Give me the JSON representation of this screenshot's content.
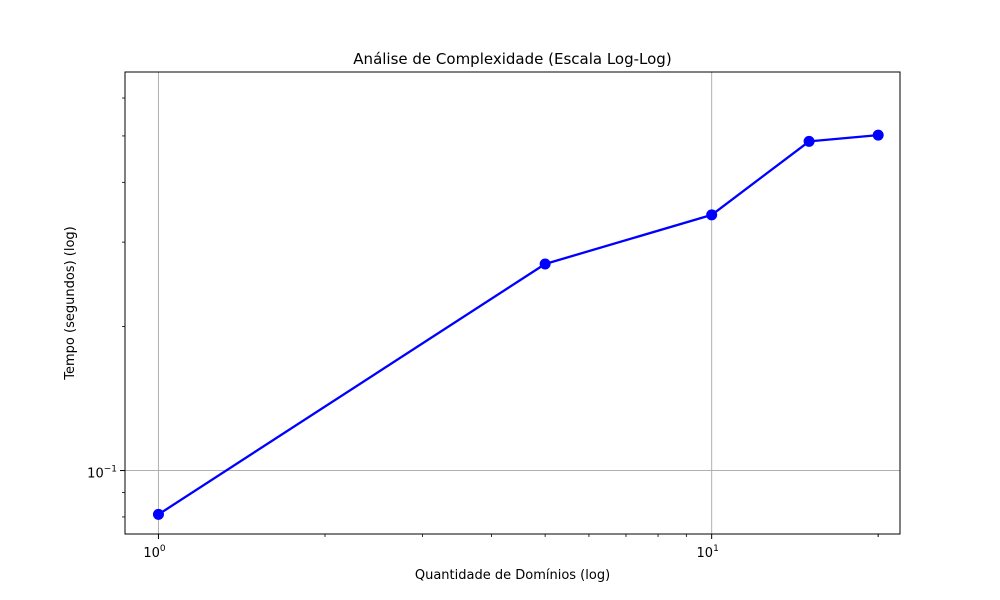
{
  "chart_data": {
    "type": "line",
    "title": "Análise de Complexidade (Escala Log-Log)",
    "xlabel": "Quantidade de Domínios (log)",
    "ylabel": "Tempo (segundos) (log)",
    "xscale": "log",
    "yscale": "log",
    "xlim": [
      0.87,
      21.9
    ],
    "ylim": [
      0.0737,
      0.68
    ],
    "x_tick_labels": [
      {
        "value": 1,
        "base": "10",
        "exp": "0"
      },
      {
        "value": 10,
        "base": "10",
        "exp": "1"
      }
    ],
    "y_tick_labels": [
      {
        "value": 0.1,
        "base": "10",
        "exp": "−1"
      }
    ],
    "grid": true,
    "series": [
      {
        "color": "#0000ff",
        "marker": "circle",
        "x": [
          1,
          5,
          10,
          15,
          20
        ],
        "y": [
          0.081,
          0.27,
          0.342,
          0.487,
          0.502
        ]
      }
    ]
  }
}
